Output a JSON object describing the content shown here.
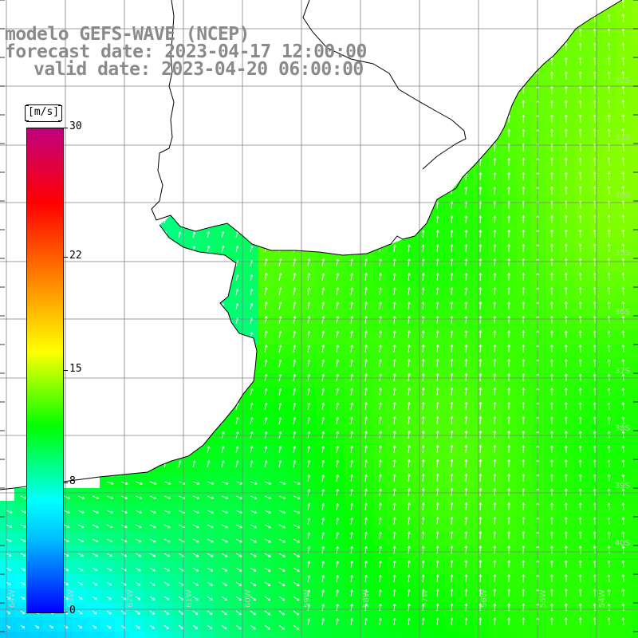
{
  "title": {
    "line1": "modelo GEFS-WAVE (NCEP)",
    "line2": "forecast date: 2023-04-17 12:00:00",
    "line3": "valid date: 2023-04-20 06:00:00"
  },
  "colorbar": {
    "unit": "[m/s]",
    "min": 0,
    "max": 30,
    "tick_labels": [
      "30",
      "22",
      "15",
      "8",
      "0"
    ],
    "tick_values": [
      30,
      22,
      15,
      8,
      0
    ],
    "colors": [
      "#0000ff",
      "#0060ff",
      "#00c0ff",
      "#00ffff",
      "#00ff80",
      "#00ff00",
      "#80ff00",
      "#ffff00",
      "#ffc000",
      "#ff8000",
      "#ff4000",
      "#ff0000",
      "#e00040",
      "#c00080"
    ]
  },
  "map": {
    "longitude_labels": [
      "64W",
      "63W",
      "62W",
      "61W",
      "60W",
      "59W",
      "58W",
      "57W",
      "56W",
      "55W",
      "54W"
    ],
    "latitude_labels": [
      "32S",
      "33S",
      "34S",
      "35S",
      "36S",
      "37S",
      "38S",
      "39S",
      "40S"
    ],
    "land_color": "#ffffff",
    "grid_color": "#808080",
    "coast_color": "#000000",
    "arrow_color": "#ffffff",
    "title_color": "#8a8a8a"
  }
}
